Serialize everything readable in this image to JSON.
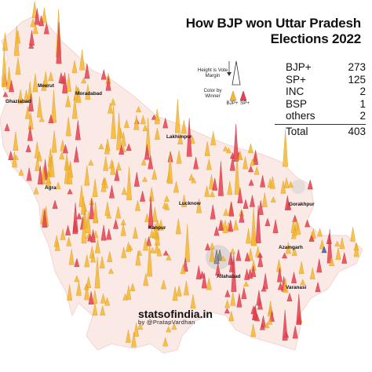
{
  "title_line1": "How BJP won Uttar Pradesh",
  "title_line2": "Elections 2022",
  "tally": [
    {
      "party": "BJP+",
      "seats": "273"
    },
    {
      "party": "SP+",
      "seats": "125"
    },
    {
      "party": "INC",
      "seats": "2"
    },
    {
      "party": "BSP",
      "seats": "1"
    },
    {
      "party": "others",
      "seats": "2"
    }
  ],
  "total": {
    "label": "Total",
    "value": "403"
  },
  "legend": {
    "height_note": "Height is Vote Margin",
    "color_note": "Color by Winner",
    "bjp": "BJP+",
    "sp": "SP+"
  },
  "colors": {
    "bjp": "#f5b731",
    "sp": "#e8414f",
    "inc": "#3a58c6",
    "bsp": "#888888",
    "map_fill": "#fbe9e6"
  },
  "cities": {
    "ghaziabad": "Ghaziabad",
    "meerut": "Meerut",
    "moradabad": "Moradabad",
    "lakhimpur": "Lakhimpur",
    "agra": "Agra",
    "lucknow": "Lucknow",
    "gorakhpur": "Gorakhpur",
    "kanpur": "Kanpur",
    "azamgarh": "Azamgarh",
    "allahabad": "Allahabad",
    "varanasi": "Varanasi"
  },
  "brand": "statsofindia.in",
  "byline": "by @PratapVardhan"
}
